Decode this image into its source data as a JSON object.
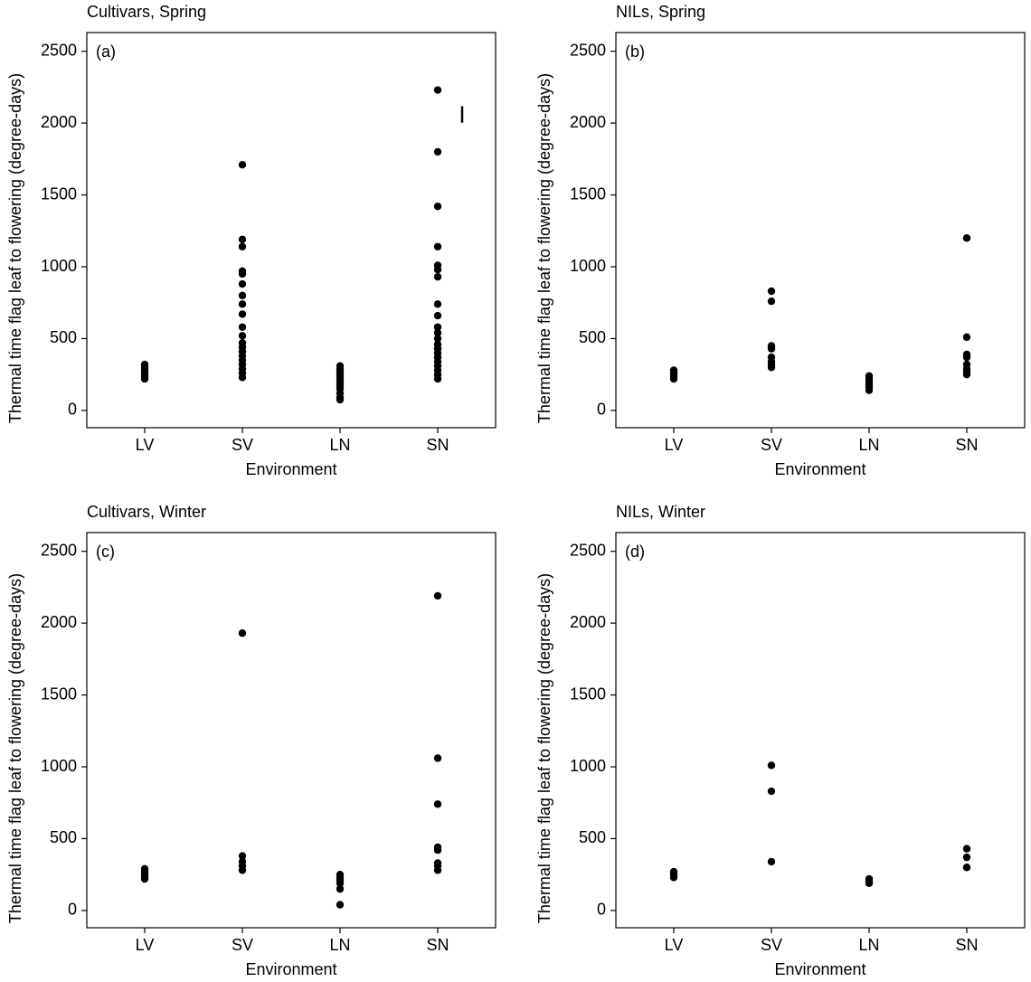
{
  "chart_data": [
    {
      "type": "scatter",
      "title": "Cultivars, Spring",
      "panel_label": "(a)",
      "x_label": "Environment",
      "y_label": "Thermal time flag leaf to flowering (degree-days)",
      "categories": [
        "LV",
        "SV",
        "LN",
        "SN"
      ],
      "color": "#000000",
      "values": [
        [
          220,
          240,
          260,
          280,
          300,
          320
        ],
        [
          1710,
          1190,
          1140,
          970,
          950,
          880,
          800,
          740,
          670,
          580,
          520,
          470,
          440,
          410,
          380,
          350,
          320,
          290,
          260,
          230
        ],
        [
          310,
          290,
          270,
          250,
          230,
          210,
          190,
          170,
          150,
          120,
          90,
          75
        ],
        [
          2230,
          1800,
          1420,
          1140,
          1010,
          980,
          930,
          740,
          660,
          580,
          540,
          500,
          460,
          430,
          400,
          370,
          340,
          310,
          280,
          250,
          220
        ]
      ],
      "error_bar": {
        "y": 2060,
        "length": 115
      },
      "ylim": [
        -120,
        2630
      ],
      "yticks": [
        0,
        500,
        1000,
        1500,
        2000,
        2500
      ]
    },
    {
      "type": "scatter",
      "title": "NILs, Spring",
      "panel_label": "(b)",
      "x_label": "Environment",
      "y_label": "Thermal time flag leaf to flowering (degree-days)",
      "categories": [
        "LV",
        "SV",
        "LN",
        "SN"
      ],
      "color": "#000000",
      "values": [
        [
          280,
          260,
          240,
          220
        ],
        [
          830,
          760,
          450,
          430,
          370,
          340,
          320,
          300
        ],
        [
          240,
          220,
          200,
          180,
          160,
          140
        ],
        [
          1200,
          510,
          390,
          370,
          320,
          290,
          270,
          250
        ]
      ],
      "ylim": [
        -120,
        2630
      ],
      "yticks": [
        0,
        500,
        1000,
        1500,
        2000,
        2500
      ]
    },
    {
      "type": "scatter",
      "title": "Cultivars, Winter",
      "panel_label": "(c)",
      "x_label": "Environment",
      "y_label": "Thermal time flag leaf to flowering (degree-days)",
      "categories": [
        "LV",
        "SV",
        "LN",
        "SN"
      ],
      "color": "#000000",
      "values": [
        [
          290,
          270,
          250,
          230,
          220
        ],
        [
          1930,
          380,
          340,
          310,
          280
        ],
        [
          250,
          230,
          210,
          190,
          150,
          40
        ],
        [
          2190,
          1060,
          740,
          440,
          420,
          330,
          310,
          280
        ]
      ],
      "ylim": [
        -120,
        2630
      ],
      "yticks": [
        0,
        500,
        1000,
        1500,
        2000,
        2500
      ]
    },
    {
      "type": "scatter",
      "title": "NILs, Winter",
      "panel_label": "(d)",
      "x_label": "Environment",
      "y_label": "Thermal time flag leaf to flowering (degree-days)",
      "categories": [
        "LV",
        "SV",
        "LN",
        "SN"
      ],
      "color": "#000000",
      "values": [
        [
          270,
          250,
          230
        ],
        [
          1010,
          830,
          340
        ],
        [
          220,
          200,
          190
        ],
        [
          430,
          370,
          300
        ]
      ],
      "ylim": [
        -120,
        2630
      ],
      "yticks": [
        0,
        500,
        1000,
        1500,
        2000,
        2500
      ]
    }
  ]
}
